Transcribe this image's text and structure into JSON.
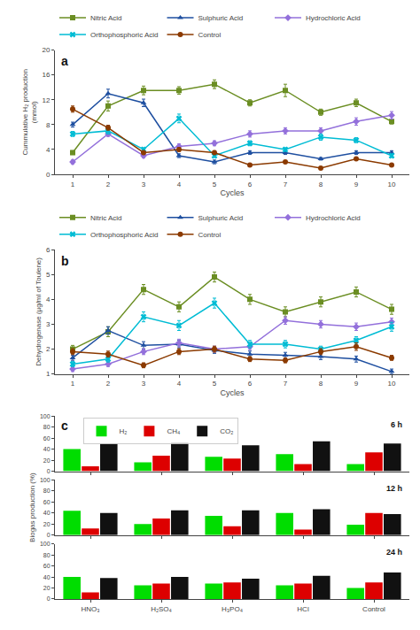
{
  "chart_data": [
    {
      "type": "line",
      "title": "a",
      "xlabel": "Cycles",
      "ylabel": "Cummulative H₂ production\n(mmol)",
      "x": [
        1,
        2,
        3,
        4,
        5,
        6,
        7,
        8,
        9,
        10
      ],
      "xlim": [
        0.5,
        10.5
      ],
      "xticks": [
        1,
        2,
        3,
        4,
        5,
        6,
        7,
        8,
        9,
        10
      ],
      "ylim": [
        0,
        20
      ],
      "yticks": [
        0,
        4,
        8,
        12,
        16,
        20
      ],
      "grid": false,
      "legend": "top",
      "series": [
        {
          "name": "Nitric Acid",
          "color": "#6b8e23",
          "marker": "square",
          "values": [
            3.5,
            11.0,
            13.5,
            13.5,
            14.5,
            11.5,
            13.5,
            10.0,
            11.5,
            8.5
          ],
          "errors": [
            0.3,
            0.8,
            0.7,
            0.6,
            0.7,
            0.5,
            1.0,
            0.5,
            0.6,
            0.4
          ]
        },
        {
          "name": "Sulphuric Acid",
          "color": "#1e4fa0",
          "marker": "triangle-up",
          "values": [
            8.0,
            13.0,
            11.5,
            3.0,
            2.0,
            3.5,
            3.5,
            2.5,
            3.5,
            3.5
          ],
          "errors": [
            0.4,
            0.7,
            0.6,
            0.3,
            0.3,
            0.3,
            0.3,
            0.2,
            0.3,
            0.3
          ]
        },
        {
          "name": "Hydrochloric Acid",
          "color": "#9370db",
          "marker": "diamond",
          "values": [
            2.0,
            6.5,
            3.0,
            4.5,
            5.0,
            6.5,
            7.0,
            7.0,
            8.5,
            9.5
          ],
          "errors": [
            0.3,
            0.4,
            0.3,
            0.4,
            0.4,
            0.5,
            0.5,
            0.5,
            0.6,
            0.6
          ]
        },
        {
          "name": "Orthophosphoric Acid",
          "color": "#00bcd4",
          "marker": "x",
          "values": [
            6.5,
            7.0,
            4.0,
            9.0,
            3.0,
            5.0,
            4.0,
            6.0,
            5.5,
            3.0
          ],
          "errors": [
            0.4,
            0.5,
            0.3,
            0.7,
            0.3,
            0.4,
            0.3,
            0.5,
            0.4,
            0.3
          ]
        },
        {
          "name": "Control",
          "color": "#8b3a00",
          "marker": "circle",
          "values": [
            10.5,
            7.5,
            3.5,
            4.0,
            3.5,
            1.5,
            2.0,
            1.0,
            2.5,
            1.5
          ],
          "errors": [
            0.5,
            0.4,
            0.3,
            0.3,
            0.3,
            0.2,
            0.2,
            0.1,
            0.2,
            0.2
          ]
        }
      ]
    },
    {
      "type": "line",
      "title": "b",
      "xlabel": "Cycles",
      "ylabel": "Dehydrogenase (µg/ml of Toulene)",
      "x": [
        1,
        2,
        3,
        4,
        5,
        6,
        7,
        8,
        9,
        10
      ],
      "xlim": [
        0.5,
        10.5
      ],
      "xticks": [
        1,
        2,
        3,
        4,
        5,
        6,
        7,
        8,
        9,
        10
      ],
      "ylim": [
        1,
        6
      ],
      "yticks": [
        1,
        2,
        3,
        4,
        5,
        6
      ],
      "grid": false,
      "legend": "top",
      "series": [
        {
          "name": "Nitric Acid",
          "color": "#6b8e23",
          "marker": "square",
          "values": [
            2.0,
            2.7,
            4.4,
            3.7,
            4.9,
            4.0,
            3.5,
            3.9,
            4.3,
            3.6
          ],
          "errors": [
            0.15,
            0.2,
            0.2,
            0.2,
            0.2,
            0.2,
            0.2,
            0.2,
            0.2,
            0.2
          ]
        },
        {
          "name": "Sulphuric Acid",
          "color": "#1e4fa0",
          "marker": "triangle-up",
          "values": [
            1.65,
            2.75,
            2.15,
            2.2,
            1.95,
            1.8,
            1.75,
            1.7,
            1.6,
            1.1
          ],
          "errors": [
            0.1,
            0.15,
            0.15,
            0.15,
            0.12,
            0.12,
            0.12,
            0.12,
            0.12,
            0.1
          ]
        },
        {
          "name": "Hydrochloric Acid",
          "color": "#9370db",
          "marker": "diamond",
          "values": [
            1.2,
            1.4,
            1.9,
            2.25,
            2.0,
            2.1,
            3.15,
            3.0,
            2.9,
            3.1
          ],
          "errors": [
            0.1,
            0.1,
            0.12,
            0.15,
            0.12,
            0.12,
            0.15,
            0.15,
            0.15,
            0.15
          ]
        },
        {
          "name": "Orthophosphoric Acid",
          "color": "#00bcd4",
          "marker": "x",
          "values": [
            1.4,
            1.6,
            3.3,
            2.95,
            3.85,
            2.2,
            2.2,
            2.0,
            2.35,
            2.9
          ],
          "errors": [
            0.1,
            0.12,
            0.2,
            0.2,
            0.2,
            0.15,
            0.15,
            0.12,
            0.15,
            0.18
          ]
        },
        {
          "name": "Control",
          "color": "#8b3a00",
          "marker": "circle",
          "values": [
            1.9,
            1.8,
            1.35,
            1.9,
            2.0,
            1.6,
            1.55,
            1.9,
            2.1,
            1.65
          ],
          "errors": [
            0.12,
            0.12,
            0.1,
            0.12,
            0.12,
            0.1,
            0.1,
            0.12,
            0.15,
            0.1
          ]
        }
      ]
    },
    {
      "type": "bar",
      "title": "c",
      "categories": [
        "HNO₃",
        "H₂SO₄",
        "H₃PO₄",
        "HCl",
        "Control"
      ],
      "ylim": [
        0,
        100
      ],
      "yticks": [
        0,
        20,
        40,
        60,
        80,
        100
      ],
      "grid": false,
      "legend": "upper left",
      "tick_labels": "y",
      "annotations": [
        "6 h"
      ],
      "series": [
        {
          "name": "H₂",
          "color": "#00dd00",
          "values": [
            40,
            16,
            26,
            31,
            13
          ]
        },
        {
          "name": "CH₄",
          "color": "#dd0000",
          "values": [
            9,
            28,
            23,
            13,
            34
          ]
        },
        {
          "name": "CO₂",
          "color": "#111111",
          "values": [
            50,
            52,
            47,
            54,
            50
          ]
        }
      ]
    },
    {
      "type": "bar",
      "ylabel": "Biogas production (%)",
      "categories": [
        "HNO₃",
        "H₂SO₄",
        "H₃PO₄",
        "HCl",
        "Control"
      ],
      "ylim": [
        0,
        100
      ],
      "yticks": [
        0,
        20,
        40,
        60,
        80,
        100
      ],
      "grid": false,
      "tick_labels": "y",
      "annotations": [
        "12 h"
      ],
      "series": [
        {
          "name": "H₂",
          "color": "#00dd00",
          "values": [
            44,
            20,
            35,
            40,
            19
          ]
        },
        {
          "name": "CH₄",
          "color": "#dd0000",
          "values": [
            12,
            30,
            16,
            10,
            40
          ]
        },
        {
          "name": "CO₂",
          "color": "#111111",
          "values": [
            40,
            45,
            45,
            47,
            38
          ]
        }
      ]
    },
    {
      "type": "bar",
      "categories": [
        "HNO₃",
        "H₂SO₄",
        "H₃PO₄",
        "HCl",
        "Control"
      ],
      "ylim": [
        0,
        100
      ],
      "yticks": [
        0,
        20,
        40,
        60,
        80,
        100
      ],
      "grid": false,
      "annotations": [
        "24 h"
      ],
      "series": [
        {
          "name": "H₂",
          "color": "#00dd00",
          "values": [
            40,
            25,
            28,
            25,
            20
          ]
        },
        {
          "name": "CH₄",
          "color": "#dd0000",
          "values": [
            12,
            28,
            30,
            28,
            30
          ]
        },
        {
          "name": "CO₂",
          "color": "#111111",
          "values": [
            38,
            40,
            37,
            42,
            48
          ]
        }
      ]
    }
  ]
}
